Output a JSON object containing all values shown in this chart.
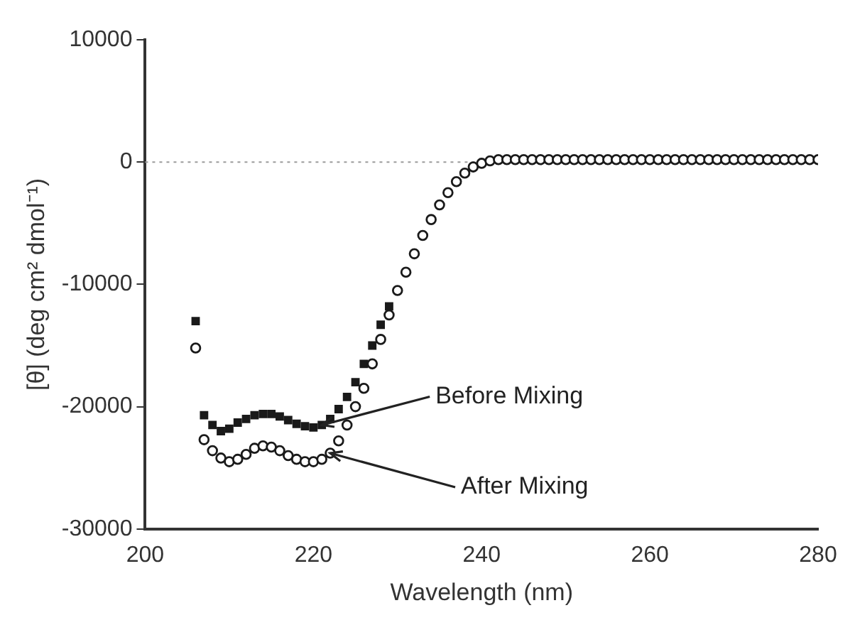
{
  "chart_data": {
    "type": "scatter",
    "xlabel": "Wavelength (nm)",
    "ylabel": "[θ] (deg cm² dmol⁻¹)",
    "xlim": [
      200,
      280
    ],
    "xticks": [
      200,
      220,
      240,
      260,
      280
    ],
    "ylim": [
      -30000,
      10000
    ],
    "yticks": [
      -30000,
      -20000,
      -10000,
      0,
      10000
    ],
    "ref_lines": [
      {
        "axis": "y",
        "value": 0,
        "color": "#9a9a9a",
        "line_style": "dotted"
      }
    ],
    "annotations": [
      {
        "text": "Before Mixing",
        "x": 221,
        "y": -21500
      },
      {
        "text": "After Mixing",
        "x": 222,
        "y": -23800
      }
    ],
    "series": [
      {
        "color": "#1a1a1a",
        "marker": "square",
        "x": [
          206,
          207,
          208,
          209,
          210,
          211,
          212,
          213,
          214,
          215,
          216,
          217,
          218,
          219,
          220,
          221,
          222,
          223,
          224,
          225,
          226,
          227,
          228,
          229
        ],
        "values": [
          -13000,
          -20700,
          -21500,
          -22000,
          -21800,
          -21300,
          -21000,
          -20700,
          -20600,
          -20600,
          -20800,
          -21100,
          -21400,
          -21600,
          -21700,
          -21500,
          -21000,
          -20200,
          -19200,
          -18000,
          -16500,
          -15000,
          -13300,
          -11800
        ]
      },
      {
        "color": "#1a1a1a",
        "marker": "circle",
        "x": [
          206,
          207,
          208,
          209,
          210,
          211,
          212,
          213,
          214,
          215,
          216,
          217,
          218,
          219,
          220,
          221,
          222,
          223,
          224,
          225,
          226,
          227,
          228,
          229,
          230,
          231,
          232,
          233,
          234,
          235,
          236,
          237,
          238,
          239,
          240,
          241,
          242,
          243,
          244,
          245,
          246,
          247,
          248,
          249,
          250,
          251,
          252,
          253,
          254,
          255,
          256,
          257,
          258,
          259,
          260,
          261,
          262,
          263,
          264,
          265,
          266,
          267,
          268,
          269,
          270,
          271,
          272,
          273,
          274,
          275,
          276,
          277,
          278,
          279,
          280
        ],
        "values": [
          -15200,
          -22700,
          -23600,
          -24200,
          -24500,
          -24300,
          -23900,
          -23400,
          -23200,
          -23300,
          -23600,
          -24000,
          -24300,
          -24500,
          -24500,
          -24300,
          -23800,
          -22800,
          -21500,
          -20000,
          -18500,
          -16500,
          -14500,
          -12500,
          -10500,
          -9000,
          -7500,
          -6000,
          -4700,
          -3500,
          -2500,
          -1600,
          -900,
          -400,
          -100,
          100,
          200,
          200,
          200,
          200,
          200,
          200,
          200,
          200,
          200,
          200,
          200,
          200,
          200,
          200,
          200,
          200,
          200,
          200,
          200,
          200,
          200,
          200,
          200,
          200,
          200,
          200,
          200,
          200,
          200,
          200,
          200,
          200,
          200,
          200,
          200,
          200,
          200,
          200,
          200
        ]
      }
    ]
  }
}
